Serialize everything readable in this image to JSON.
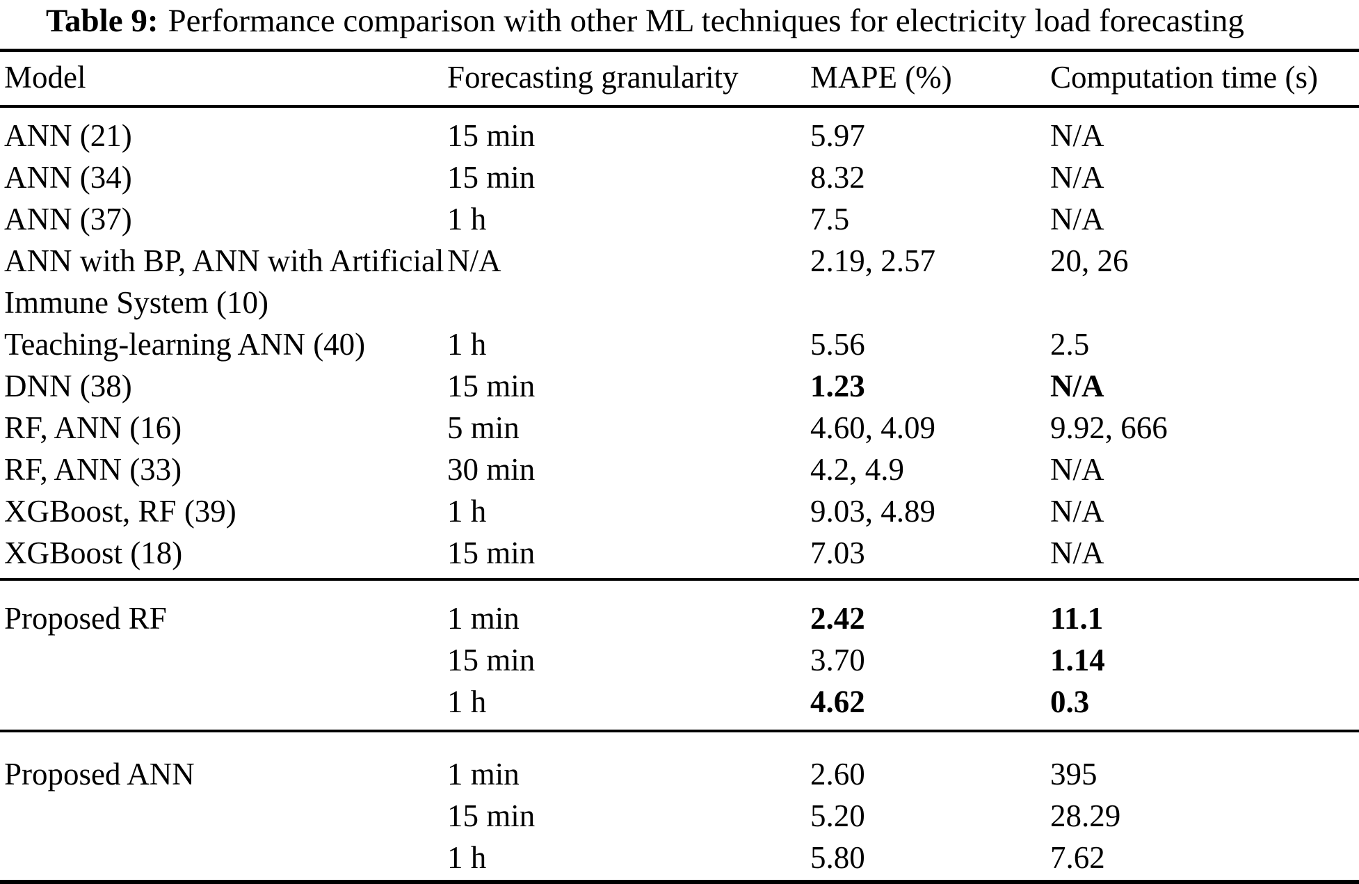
{
  "caption": {
    "label": "Table 9:",
    "text": "Performance comparison with other ML techniques for electricity load forecasting"
  },
  "table": {
    "headers": [
      "Model",
      "Forecasting granularity",
      "MAPE (%)",
      "Computation time (s)"
    ],
    "sections": [
      {
        "name": "other-techniques",
        "rows": [
          {
            "model": "ANN (21)",
            "granularity": "15 min",
            "mape": "5.97",
            "time": "N/A"
          },
          {
            "model": "ANN (34)",
            "granularity": "15 min",
            "mape": "8.32",
            "time": "N/A"
          },
          {
            "model": "ANN (37)",
            "granularity": "1 h",
            "mape": "7.5",
            "time": "N/A"
          },
          {
            "model": "ANN with BP, ANN with Artificial Immune System (10)",
            "granularity": "N/A",
            "mape": "2.19, 2.57",
            "time": "20, 26"
          },
          {
            "model": "Teaching-learning ANN (40)",
            "granularity": "1 h",
            "mape": "5.56",
            "time": "2.5"
          },
          {
            "model": "DNN (38)",
            "granularity": "15 min",
            "mape": "1.23",
            "time": "N/A",
            "mape_bold": true,
            "time_bold": true
          },
          {
            "model": "RF, ANN (16)",
            "granularity": "5 min",
            "mape": "4.60, 4.09",
            "time": "9.92, 666"
          },
          {
            "model": "RF, ANN (33)",
            "granularity": "30 min",
            "mape": "4.2, 4.9",
            "time": "N/A"
          },
          {
            "model": "XGBoost, RF (39)",
            "granularity": "1 h",
            "mape": "9.03, 4.89",
            "time": "N/A"
          },
          {
            "model": "XGBoost (18)",
            "granularity": "15 min",
            "mape": "7.03",
            "time": "N/A"
          }
        ]
      },
      {
        "name": "proposed-rf",
        "rows": [
          {
            "model": "Proposed RF",
            "granularity": "1 min",
            "mape": "2.42",
            "time": "11.1",
            "mape_bold": true,
            "time_bold": true
          },
          {
            "model": "",
            "granularity": "15 min",
            "mape": "3.70",
            "time": "1.14",
            "time_bold": true
          },
          {
            "model": "",
            "granularity": "1 h",
            "mape": "4.62",
            "time": "0.3",
            "mape_bold": true,
            "time_bold": true
          }
        ]
      },
      {
        "name": "proposed-ann",
        "rows": [
          {
            "model": "Proposed ANN",
            "granularity": "1 min",
            "mape": "2.60",
            "time": "395"
          },
          {
            "model": "",
            "granularity": "15 min",
            "mape": "5.20",
            "time": "28.29"
          },
          {
            "model": "",
            "granularity": "1 h",
            "mape": "5.80",
            "time": "7.62"
          }
        ]
      }
    ]
  },
  "colors": {
    "background": "#ffffff",
    "text": "#000000",
    "rule": "#000000"
  }
}
